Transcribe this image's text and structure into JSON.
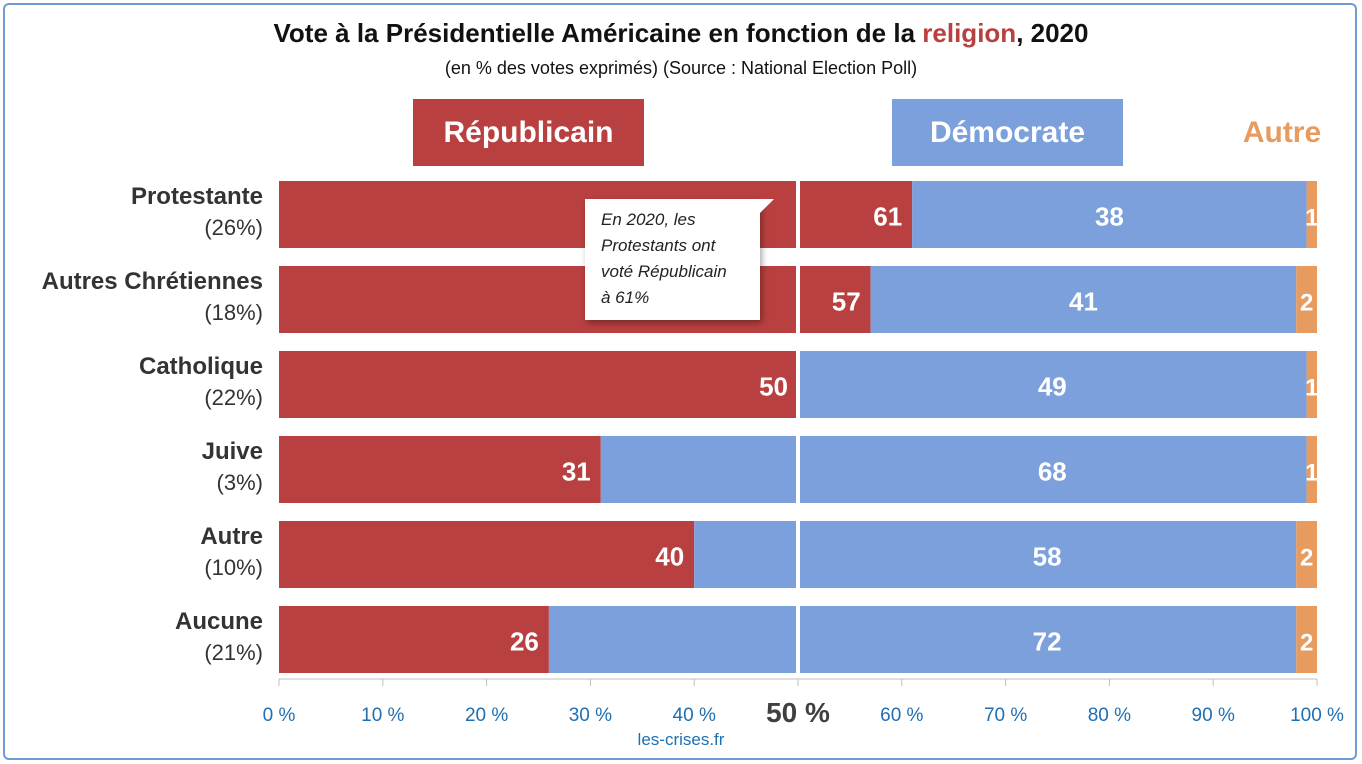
{
  "header": {
    "title_before": "Vote à la Présidentielle Américaine en fonction de la ",
    "title_accent": "religion",
    "title_after": ", 2020",
    "subtitle": "(en % des votes exprimés) (Source : National Election Poll)"
  },
  "legend": {
    "republican": "Républicain",
    "democrat": "Démocrate",
    "other": "Autre"
  },
  "callout": {
    "lines": [
      "En 2020, les",
      "Protestants ont",
      "voté Républicain",
      "à 61%"
    ]
  },
  "footer": "les-crises.fr",
  "colors": {
    "republican": "#b94040",
    "democrat": "#7ba0dc",
    "other": "#e89b5f",
    "tick": "#1f6fb2"
  },
  "chart_data": {
    "type": "bar",
    "orientation": "horizontal",
    "stacked": true,
    "xlim": [
      0,
      100
    ],
    "categories": [
      "Protestante",
      "Autres Chrétiennes",
      "Catholique",
      "Juive",
      "Autre",
      "Aucune"
    ],
    "category_shares": [
      "(26%)",
      "(18%)",
      "(22%)",
      "(3%)",
      "(10%)",
      "(21%)"
    ],
    "series": [
      {
        "name": "Républicain",
        "values": [
          61,
          57,
          50,
          31,
          40,
          26
        ]
      },
      {
        "name": "Démocrate",
        "values": [
          38,
          41,
          49,
          68,
          58,
          72
        ]
      },
      {
        "name": "Autre",
        "values": [
          1,
          2,
          1,
          1,
          2,
          2
        ]
      }
    ],
    "ticks": [
      "0 %",
      "10 %",
      "20 %",
      "30 %",
      "40 %",
      "50 %",
      "60 %",
      "70 %",
      "80 %",
      "90 %",
      "100 %"
    ],
    "midline_value": 50
  }
}
